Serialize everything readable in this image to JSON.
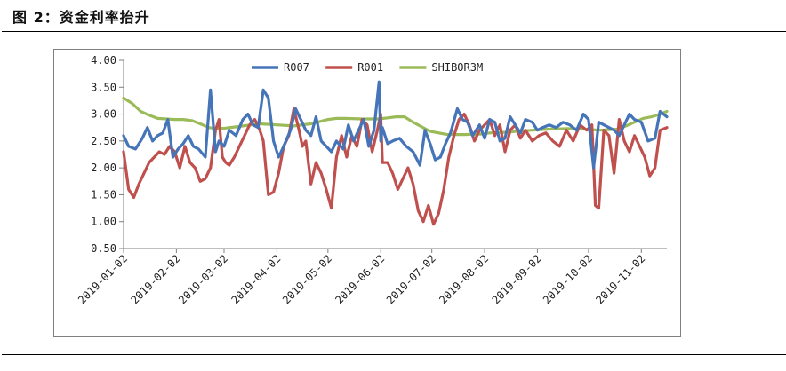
{
  "figure": {
    "title": "图 2：资金利率抬升"
  },
  "chart_data": {
    "type": "line",
    "title": "",
    "xlabel": "",
    "ylabel": "",
    "ylim": [
      0.5,
      4.0
    ],
    "yticks": [
      "4.00",
      "3.50",
      "3.00",
      "2.50",
      "2.00",
      "1.50",
      "1.00",
      "0.50"
    ],
    "ytick_values": [
      4.0,
      3.5,
      3.0,
      2.5,
      2.0,
      1.5,
      1.0,
      0.5
    ],
    "x_tick_labels": [
      "2019-01-02",
      "2019-02-02",
      "2019-03-02",
      "2019-04-02",
      "2019-05-02",
      "2019-06-02",
      "2019-07-02",
      "2019-08-02",
      "2019-09-02",
      "2019-10-02",
      "2019-11-02"
    ],
    "x_range_days": [
      0,
      319
    ],
    "x_tick_days": [
      0,
      31,
      59,
      90,
      120,
      151,
      181,
      212,
      243,
      273,
      304
    ],
    "legend_position": "top-center",
    "grid": false,
    "series": [
      {
        "name": "R007",
        "color": "#4575b8",
        "x": [
          0,
          3,
          7,
          11,
          14,
          17,
          20,
          23,
          26,
          29,
          32,
          35,
          38,
          41,
          44,
          48,
          51,
          54,
          56,
          59,
          62,
          66,
          70,
          73,
          76,
          79,
          82,
          85,
          88,
          91,
          94,
          98,
          101,
          104,
          107,
          110,
          113,
          116,
          119,
          122,
          125,
          129,
          132,
          135,
          138,
          141,
          144,
          147,
          150,
          151,
          152,
          155,
          158,
          162,
          166,
          170,
          174,
          177,
          180,
          183,
          186,
          189,
          192,
          196,
          199,
          202,
          205,
          209,
          212,
          215,
          218,
          221,
          224,
          227,
          230,
          233,
          236,
          240,
          243,
          246,
          250,
          254,
          258,
          262,
          266,
          270,
          273,
          276,
          279,
          282,
          285,
          288,
          291,
          294,
          297,
          300,
          304,
          308,
          312,
          315,
          319
        ],
        "y": [
          2.6,
          2.4,
          2.35,
          2.55,
          2.75,
          2.5,
          2.6,
          2.65,
          2.9,
          2.2,
          2.35,
          2.45,
          2.6,
          2.4,
          2.35,
          2.2,
          3.45,
          2.3,
          2.5,
          2.4,
          2.7,
          2.6,
          2.9,
          3.0,
          2.8,
          2.75,
          3.45,
          3.3,
          2.5,
          2.2,
          2.4,
          2.7,
          3.1,
          2.9,
          2.7,
          2.6,
          2.95,
          2.5,
          2.4,
          2.3,
          2.5,
          2.35,
          2.8,
          2.5,
          2.7,
          2.9,
          2.4,
          2.7,
          3.6,
          2.5,
          2.75,
          2.45,
          2.5,
          2.55,
          2.4,
          2.3,
          2.05,
          2.7,
          2.45,
          2.15,
          2.2,
          2.45,
          2.65,
          3.1,
          2.9,
          2.85,
          2.6,
          2.8,
          2.55,
          2.9,
          2.85,
          2.5,
          2.55,
          2.95,
          2.8,
          2.65,
          2.9,
          2.85,
          2.7,
          2.75,
          2.8,
          2.75,
          2.85,
          2.8,
          2.7,
          3.0,
          2.9,
          2.0,
          2.85,
          2.8,
          2.75,
          2.7,
          2.6,
          2.8,
          3.0,
          2.9,
          2.85,
          2.5,
          2.55,
          3.05,
          2.95
        ]
      },
      {
        "name": "R001",
        "color": "#c0504d",
        "x": [
          0,
          3,
          6,
          9,
          12,
          15,
          18,
          21,
          24,
          27,
          30,
          33,
          36,
          39,
          42,
          45,
          48,
          51,
          54,
          56,
          58,
          60,
          62,
          65,
          68,
          71,
          74,
          77,
          80,
          82,
          85,
          88,
          91,
          94,
          97,
          100,
          103,
          105,
          107,
          110,
          113,
          116,
          119,
          122,
          125,
          128,
          131,
          134,
          137,
          140,
          143,
          146,
          149,
          151,
          152,
          155,
          158,
          161,
          164,
          167,
          170,
          173,
          176,
          179,
          182,
          185,
          188,
          191,
          194,
          197,
          200,
          203,
          206,
          209,
          212,
          215,
          218,
          221,
          224,
          227,
          230,
          233,
          236,
          240,
          244,
          248,
          252,
          256,
          260,
          264,
          268,
          272,
          275,
          277,
          279,
          282,
          285,
          288,
          291,
          294,
          297,
          300,
          303,
          306,
          309,
          312,
          315,
          319
        ],
        "y": [
          2.3,
          1.6,
          1.45,
          1.7,
          1.9,
          2.1,
          2.2,
          2.3,
          2.25,
          2.4,
          2.3,
          2.0,
          2.4,
          2.1,
          2.0,
          1.75,
          1.8,
          2.0,
          2.7,
          2.9,
          2.2,
          2.1,
          2.05,
          2.2,
          2.4,
          2.6,
          2.8,
          2.9,
          2.7,
          2.5,
          1.5,
          1.55,
          1.9,
          2.4,
          2.6,
          3.1,
          2.7,
          2.4,
          2.5,
          1.7,
          2.1,
          1.9,
          1.6,
          1.25,
          2.2,
          2.6,
          2.2,
          2.6,
          2.4,
          2.9,
          2.8,
          2.3,
          2.7,
          3.0,
          2.1,
          2.1,
          1.9,
          1.6,
          1.8,
          2.0,
          1.7,
          1.2,
          1.0,
          1.3,
          0.95,
          1.15,
          1.6,
          2.2,
          2.6,
          2.9,
          3.0,
          2.8,
          2.5,
          2.7,
          2.8,
          2.9,
          2.6,
          2.8,
          2.3,
          2.7,
          2.8,
          2.55,
          2.7,
          2.5,
          2.6,
          2.65,
          2.5,
          2.4,
          2.7,
          2.5,
          2.8,
          2.7,
          2.8,
          1.3,
          1.25,
          2.7,
          2.6,
          1.9,
          2.9,
          2.5,
          2.3,
          2.6,
          2.4,
          2.2,
          1.85,
          2.0,
          2.7,
          2.75
        ]
      },
      {
        "name": "SHIBOR3M",
        "color": "#9bbb59",
        "x": [
          0,
          5,
          10,
          15,
          20,
          25,
          30,
          35,
          40,
          45,
          50,
          55,
          60,
          65,
          70,
          75,
          80,
          90,
          100,
          110,
          120,
          125,
          130,
          140,
          150,
          155,
          160,
          165,
          170,
          180,
          190,
          200,
          210,
          215,
          220,
          225,
          230,
          240,
          250,
          260,
          270,
          280,
          290,
          295,
          300,
          305,
          310,
          315,
          319
        ],
        "y": [
          3.3,
          3.2,
          3.05,
          2.98,
          2.92,
          2.91,
          2.9,
          2.9,
          2.88,
          2.82,
          2.75,
          2.73,
          2.74,
          2.76,
          2.78,
          2.8,
          2.82,
          2.8,
          2.78,
          2.82,
          2.9,
          2.92,
          2.92,
          2.91,
          2.91,
          2.93,
          2.95,
          2.95,
          2.85,
          2.68,
          2.62,
          2.62,
          2.63,
          2.65,
          2.66,
          2.66,
          2.68,
          2.7,
          2.72,
          2.73,
          2.72,
          2.7,
          2.72,
          2.78,
          2.85,
          2.92,
          2.95,
          3.0,
          3.05
        ]
      }
    ]
  }
}
